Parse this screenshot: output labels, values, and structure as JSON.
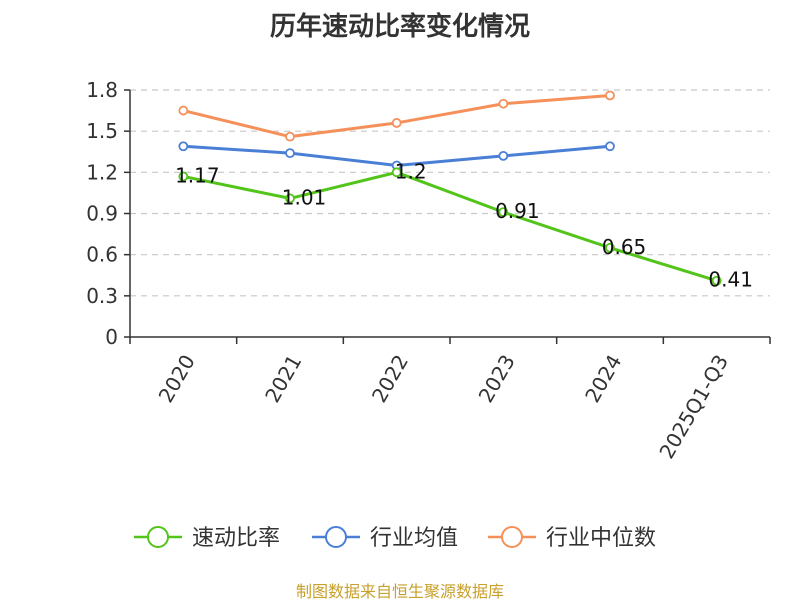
{
  "chart_data": {
    "type": "line",
    "title": "历年速动比率变化情况",
    "categories": [
      "2020",
      "2021",
      "2022",
      "2023",
      "2024",
      "2025Q1-Q3"
    ],
    "ylim": [
      0,
      1.8
    ],
    "yticks": [
      0,
      0.3,
      0.6,
      0.9,
      1.2,
      1.5,
      1.8
    ],
    "ytick_labels": [
      "0",
      "0.3",
      "0.6",
      "0.9",
      "1.2",
      "1.5",
      "1.8"
    ],
    "grid": true,
    "legend_position": "bottom",
    "series": [
      {
        "name": "速动比率",
        "color": "#52c41a",
        "values": [
          1.17,
          1.01,
          1.2,
          0.91,
          0.65,
          0.41
        ],
        "labels": [
          "1.17",
          "1.01",
          "1.2",
          "0.91",
          "0.65",
          "0.41"
        ]
      },
      {
        "name": "行业均值",
        "color": "#4a7fd6",
        "values": [
          1.39,
          1.34,
          1.25,
          1.32,
          1.39,
          null
        ]
      },
      {
        "name": "行业中位数",
        "color": "#f5905a",
        "values": [
          1.65,
          1.46,
          1.56,
          1.7,
          1.76,
          null
        ]
      }
    ]
  },
  "source_text": "制图数据来自恒生聚源数据库"
}
